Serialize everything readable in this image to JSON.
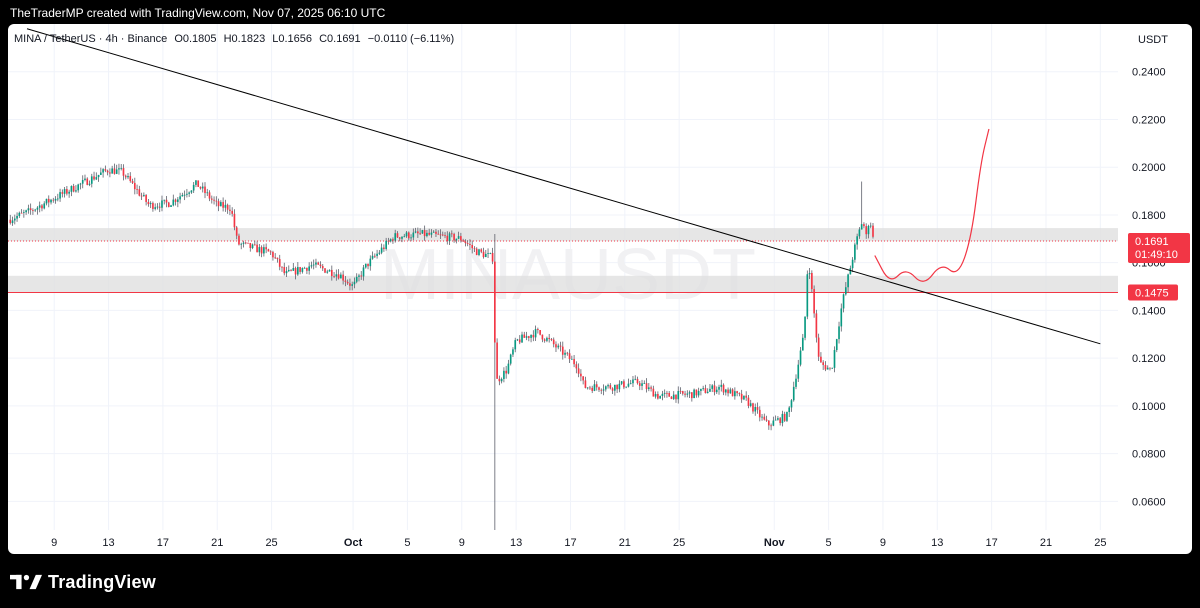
{
  "header": {
    "attribution": "TheTraderMP created with TradingView.com, Nov 07, 2025 06:10 UTC"
  },
  "legend": {
    "symbol": "MINA / TetherUS · 4h · Binance",
    "open": "O0.1805",
    "high": "H0.1823",
    "low": "L0.1656",
    "close": "C0.1691",
    "change": "−0.0110 (−6.11%)"
  },
  "currency_button": "USDT",
  "watermark": "MINAUSDT",
  "price_tags": {
    "current_price": "0.1691",
    "countdown": "01:49:10",
    "level_price": "0.1475"
  },
  "footer": {
    "brand": "TradingView"
  },
  "colors": {
    "up": "#089981",
    "down": "#f23645",
    "trendline": "#000000",
    "zone": "#e0e0e0",
    "projection": "#f23645",
    "level": "#f23645"
  },
  "chart_data": {
    "type": "candlestick",
    "title": "",
    "symbol": "MINA / TetherUS",
    "interval": "4h",
    "exchange": "Binance",
    "y_axis": {
      "ticks": [
        "0.0600",
        "0.0800",
        "0.1000",
        "0.1200",
        "0.1400",
        "0.1600",
        "0.1800",
        "0.2000",
        "0.2200",
        "0.2400"
      ],
      "tick_values": [
        0.06,
        0.08,
        0.1,
        0.12,
        0.14,
        0.16,
        0.18,
        0.2,
        0.22,
        0.24
      ],
      "range": [
        0.048,
        0.26
      ],
      "unit": "USDT"
    },
    "x_axis": {
      "ticks": [
        "9",
        "13",
        "17",
        "21",
        "25",
        "Oct",
        "5",
        "9",
        "13",
        "17",
        "21",
        "25",
        "Nov",
        "5",
        "9",
        "13",
        "17",
        "21",
        "25"
      ],
      "tick_days": [
        9,
        13,
        17,
        21,
        25,
        31,
        35,
        39,
        43,
        47,
        51,
        55,
        62,
        66,
        70,
        74,
        78,
        82,
        86
      ],
      "day_origin": "Sep 1, 2025",
      "range_days": [
        5.6,
        87.3
      ]
    },
    "price_path": [
      [
        5.6,
        0.178
      ],
      [
        7,
        0.181
      ],
      [
        9,
        0.187
      ],
      [
        11,
        0.193
      ],
      [
        13,
        0.199
      ],
      [
        14,
        0.198
      ],
      [
        16,
        0.184
      ],
      [
        17.5,
        0.185
      ],
      [
        19.5,
        0.193
      ],
      [
        21,
        0.184
      ],
      [
        22,
        0.183
      ],
      [
        22.5,
        0.168
      ],
      [
        25,
        0.164
      ],
      [
        26,
        0.155
      ],
      [
        28,
        0.159
      ],
      [
        30,
        0.155
      ],
      [
        31,
        0.15
      ],
      [
        32,
        0.159
      ],
      [
        34,
        0.171
      ],
      [
        36,
        0.172
      ],
      [
        37.5,
        0.171
      ],
      [
        39,
        0.17
      ],
      [
        40,
        0.165
      ],
      [
        41.3,
        0.162
      ],
      [
        41.5,
        0.11
      ],
      [
        42.3,
        0.115
      ],
      [
        43,
        0.127
      ],
      [
        44.5,
        0.131
      ],
      [
        45.5,
        0.127
      ],
      [
        47.5,
        0.117
      ],
      [
        48,
        0.108
      ],
      [
        50,
        0.108
      ],
      [
        52,
        0.11
      ],
      [
        53.5,
        0.104
      ],
      [
        56,
        0.105
      ],
      [
        58,
        0.108
      ],
      [
        60,
        0.102
      ],
      [
        61.5,
        0.092
      ],
      [
        63,
        0.096
      ],
      [
        64.2,
        0.13
      ],
      [
        64.5,
        0.163
      ],
      [
        65.3,
        0.118
      ],
      [
        66.2,
        0.115
      ],
      [
        67,
        0.143
      ],
      [
        68,
        0.168
      ],
      [
        68.5,
        0.178
      ],
      [
        68.8,
        0.17
      ],
      [
        69,
        0.18
      ],
      [
        69.3,
        0.169
      ]
    ],
    "wick_extremes": {
      "high": 0.194,
      "low": 0.048
    },
    "horizontal_zones": [
      {
        "top": 0.1745,
        "bottom": 0.169
      },
      {
        "top": 0.1545,
        "bottom": 0.1475
      }
    ],
    "horizontal_lines": [
      {
        "value": 0.1691,
        "style": "dotted"
      },
      {
        "value": 0.1475,
        "style": "solid"
      }
    ],
    "trendline": {
      "start": [
        7,
        0.258
      ],
      "end": [
        86,
        0.126
      ]
    },
    "projection_path": [
      [
        69.4,
        0.163
      ],
      [
        70.5,
        0.151
      ],
      [
        71.7,
        0.158
      ],
      [
        73,
        0.15
      ],
      [
        74.3,
        0.16
      ],
      [
        75.5,
        0.154
      ],
      [
        76.5,
        0.17
      ],
      [
        77.2,
        0.202
      ],
      [
        77.8,
        0.216
      ]
    ]
  }
}
